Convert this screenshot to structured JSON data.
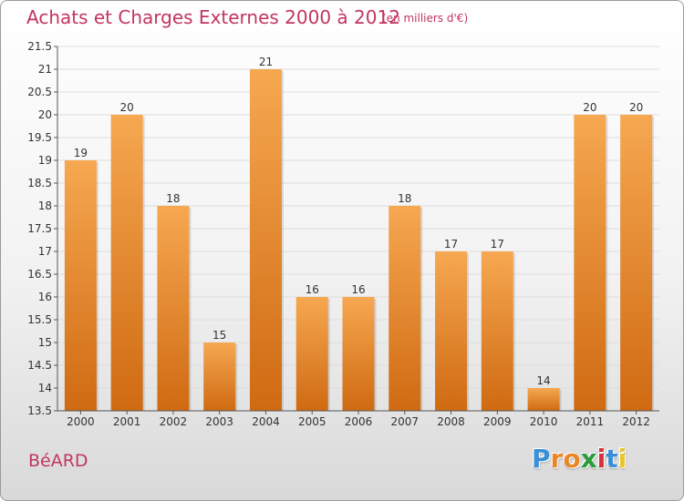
{
  "title": "Achats et Charges Externes 2000 à 2012",
  "subtitle": "(en milliers d'€)",
  "commune": "BéARD",
  "logo": {
    "letters": [
      "P",
      "r",
      "o",
      "x",
      "i",
      "t",
      "i"
    ],
    "colors": [
      "#3a8fd6",
      "#e8872a",
      "#e8872a",
      "#2a9a3a",
      "#d6303a",
      "#3a8fd6",
      "#e8c62a"
    ]
  },
  "colors": {
    "bar_top": "#f6a851",
    "bar_bottom": "#cf6a12",
    "grid": "#dddddd",
    "axis": "#555555"
  },
  "chart_data": {
    "type": "bar",
    "categories": [
      "2000",
      "2001",
      "2002",
      "2003",
      "2004",
      "2005",
      "2006",
      "2007",
      "2008",
      "2009",
      "2010",
      "2011",
      "2012"
    ],
    "values": [
      19,
      20,
      18,
      15,
      21,
      16,
      16,
      18,
      17,
      17,
      14,
      20,
      20
    ],
    "data_labels": [
      "19",
      "20",
      "18",
      "15",
      "21",
      "16",
      "16",
      "18",
      "17",
      "17",
      "14",
      "20",
      "20"
    ],
    "yticks": [
      13.5,
      14,
      14.5,
      15,
      15.5,
      16,
      16.5,
      17,
      17.5,
      18,
      18.5,
      19,
      19.5,
      20,
      20.5,
      21,
      21.5
    ],
    "ytick_labels": [
      "13.5",
      "14",
      "14.5",
      "15",
      "15.5",
      "16",
      "16.5",
      "17",
      "17.5",
      "18",
      "18.5",
      "19",
      "19.5",
      "20",
      "20.5",
      "21",
      "21.5"
    ],
    "ylim": [
      13.5,
      21.5
    ],
    "grid": true,
    "xlabel": "",
    "ylabel": ""
  }
}
